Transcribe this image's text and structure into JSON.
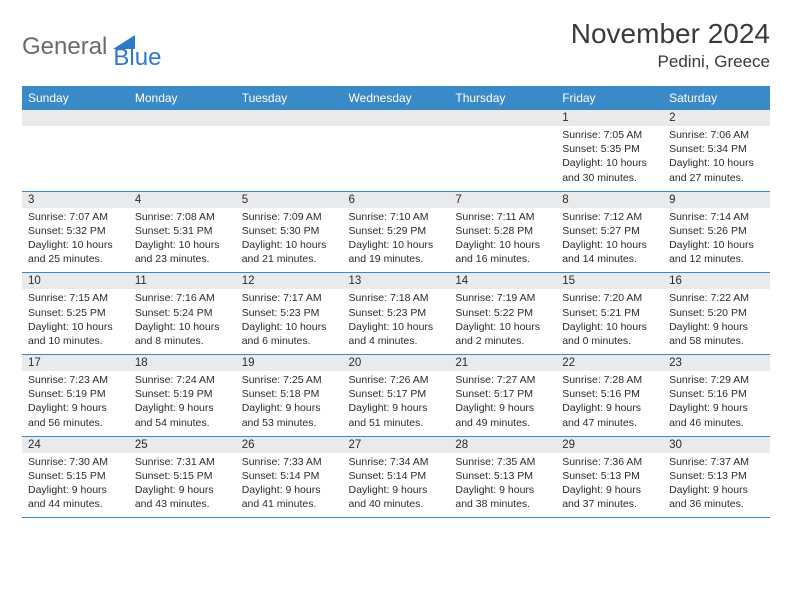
{
  "logo": {
    "word1": "General",
    "word2": "Blue"
  },
  "title": "November 2024",
  "location": "Pedini, Greece",
  "colors": {
    "header_bg": "#3a8ac8",
    "header_text": "#ffffff",
    "daynum_bg": "#e9eaec",
    "cell_text": "#2b2b2b",
    "rule": "#3a8ac8",
    "logo_gray": "#6b6b6b",
    "logo_blue": "#2f7ac6"
  },
  "day_names": [
    "Sunday",
    "Monday",
    "Tuesday",
    "Wednesday",
    "Thursday",
    "Friday",
    "Saturday"
  ],
  "weeks": [
    [
      {},
      {},
      {},
      {},
      {},
      {
        "n": "1",
        "sunrise": "Sunrise: 7:05 AM",
        "sunset": "Sunset: 5:35 PM",
        "daylight": "Daylight: 10 hours and 30 minutes."
      },
      {
        "n": "2",
        "sunrise": "Sunrise: 7:06 AM",
        "sunset": "Sunset: 5:34 PM",
        "daylight": "Daylight: 10 hours and 27 minutes."
      }
    ],
    [
      {
        "n": "3",
        "sunrise": "Sunrise: 7:07 AM",
        "sunset": "Sunset: 5:32 PM",
        "daylight": "Daylight: 10 hours and 25 minutes."
      },
      {
        "n": "4",
        "sunrise": "Sunrise: 7:08 AM",
        "sunset": "Sunset: 5:31 PM",
        "daylight": "Daylight: 10 hours and 23 minutes."
      },
      {
        "n": "5",
        "sunrise": "Sunrise: 7:09 AM",
        "sunset": "Sunset: 5:30 PM",
        "daylight": "Daylight: 10 hours and 21 minutes."
      },
      {
        "n": "6",
        "sunrise": "Sunrise: 7:10 AM",
        "sunset": "Sunset: 5:29 PM",
        "daylight": "Daylight: 10 hours and 19 minutes."
      },
      {
        "n": "7",
        "sunrise": "Sunrise: 7:11 AM",
        "sunset": "Sunset: 5:28 PM",
        "daylight": "Daylight: 10 hours and 16 minutes."
      },
      {
        "n": "8",
        "sunrise": "Sunrise: 7:12 AM",
        "sunset": "Sunset: 5:27 PM",
        "daylight": "Daylight: 10 hours and 14 minutes."
      },
      {
        "n": "9",
        "sunrise": "Sunrise: 7:14 AM",
        "sunset": "Sunset: 5:26 PM",
        "daylight": "Daylight: 10 hours and 12 minutes."
      }
    ],
    [
      {
        "n": "10",
        "sunrise": "Sunrise: 7:15 AM",
        "sunset": "Sunset: 5:25 PM",
        "daylight": "Daylight: 10 hours and 10 minutes."
      },
      {
        "n": "11",
        "sunrise": "Sunrise: 7:16 AM",
        "sunset": "Sunset: 5:24 PM",
        "daylight": "Daylight: 10 hours and 8 minutes."
      },
      {
        "n": "12",
        "sunrise": "Sunrise: 7:17 AM",
        "sunset": "Sunset: 5:23 PM",
        "daylight": "Daylight: 10 hours and 6 minutes."
      },
      {
        "n": "13",
        "sunrise": "Sunrise: 7:18 AM",
        "sunset": "Sunset: 5:23 PM",
        "daylight": "Daylight: 10 hours and 4 minutes."
      },
      {
        "n": "14",
        "sunrise": "Sunrise: 7:19 AM",
        "sunset": "Sunset: 5:22 PM",
        "daylight": "Daylight: 10 hours and 2 minutes."
      },
      {
        "n": "15",
        "sunrise": "Sunrise: 7:20 AM",
        "sunset": "Sunset: 5:21 PM",
        "daylight": "Daylight: 10 hours and 0 minutes."
      },
      {
        "n": "16",
        "sunrise": "Sunrise: 7:22 AM",
        "sunset": "Sunset: 5:20 PM",
        "daylight": "Daylight: 9 hours and 58 minutes."
      }
    ],
    [
      {
        "n": "17",
        "sunrise": "Sunrise: 7:23 AM",
        "sunset": "Sunset: 5:19 PM",
        "daylight": "Daylight: 9 hours and 56 minutes."
      },
      {
        "n": "18",
        "sunrise": "Sunrise: 7:24 AM",
        "sunset": "Sunset: 5:19 PM",
        "daylight": "Daylight: 9 hours and 54 minutes."
      },
      {
        "n": "19",
        "sunrise": "Sunrise: 7:25 AM",
        "sunset": "Sunset: 5:18 PM",
        "daylight": "Daylight: 9 hours and 53 minutes."
      },
      {
        "n": "20",
        "sunrise": "Sunrise: 7:26 AM",
        "sunset": "Sunset: 5:17 PM",
        "daylight": "Daylight: 9 hours and 51 minutes."
      },
      {
        "n": "21",
        "sunrise": "Sunrise: 7:27 AM",
        "sunset": "Sunset: 5:17 PM",
        "daylight": "Daylight: 9 hours and 49 minutes."
      },
      {
        "n": "22",
        "sunrise": "Sunrise: 7:28 AM",
        "sunset": "Sunset: 5:16 PM",
        "daylight": "Daylight: 9 hours and 47 minutes."
      },
      {
        "n": "23",
        "sunrise": "Sunrise: 7:29 AM",
        "sunset": "Sunset: 5:16 PM",
        "daylight": "Daylight: 9 hours and 46 minutes."
      }
    ],
    [
      {
        "n": "24",
        "sunrise": "Sunrise: 7:30 AM",
        "sunset": "Sunset: 5:15 PM",
        "daylight": "Daylight: 9 hours and 44 minutes."
      },
      {
        "n": "25",
        "sunrise": "Sunrise: 7:31 AM",
        "sunset": "Sunset: 5:15 PM",
        "daylight": "Daylight: 9 hours and 43 minutes."
      },
      {
        "n": "26",
        "sunrise": "Sunrise: 7:33 AM",
        "sunset": "Sunset: 5:14 PM",
        "daylight": "Daylight: 9 hours and 41 minutes."
      },
      {
        "n": "27",
        "sunrise": "Sunrise: 7:34 AM",
        "sunset": "Sunset: 5:14 PM",
        "daylight": "Daylight: 9 hours and 40 minutes."
      },
      {
        "n": "28",
        "sunrise": "Sunrise: 7:35 AM",
        "sunset": "Sunset: 5:13 PM",
        "daylight": "Daylight: 9 hours and 38 minutes."
      },
      {
        "n": "29",
        "sunrise": "Sunrise: 7:36 AM",
        "sunset": "Sunset: 5:13 PM",
        "daylight": "Daylight: 9 hours and 37 minutes."
      },
      {
        "n": "30",
        "sunrise": "Sunrise: 7:37 AM",
        "sunset": "Sunset: 5:13 PM",
        "daylight": "Daylight: 9 hours and 36 minutes."
      }
    ]
  ]
}
